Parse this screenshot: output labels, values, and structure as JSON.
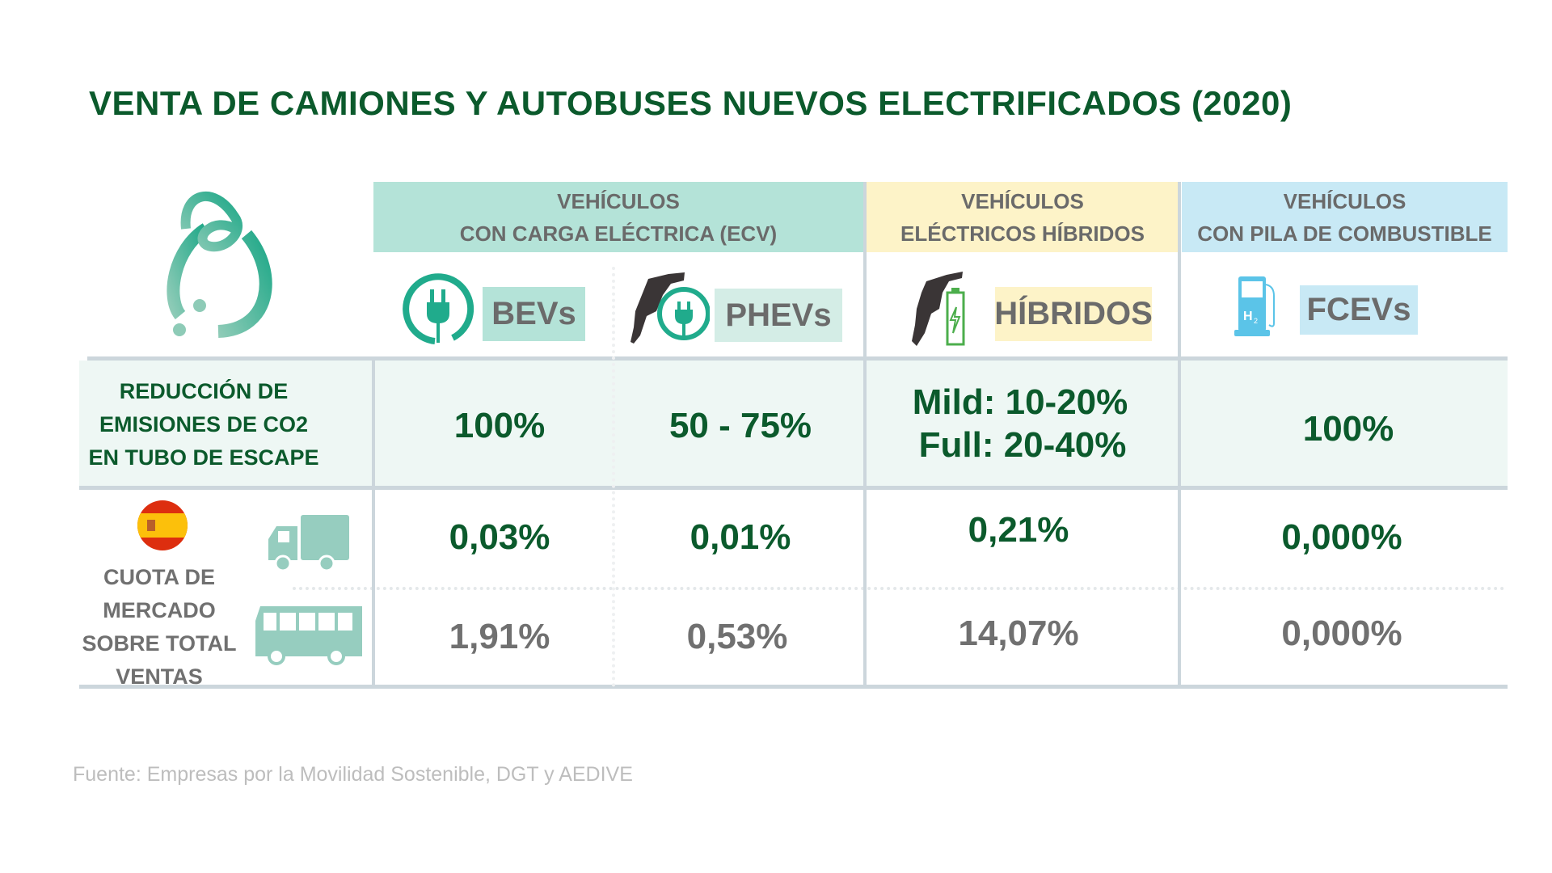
{
  "title": "VENTA DE CAMIONES Y AUTOBUSES NUEVOS ELECTRIFICADOS (2020)",
  "groups": [
    {
      "line1": "VEHÍCULOS",
      "line2": "CON CARGA ELÉCTRICA (ECV)",
      "color": "#b4e3d8"
    },
    {
      "line1": "VEHÍCULOS",
      "line2": "ELÉCTRICOS HÍBRIDOS",
      "color": "#fdf3c8"
    },
    {
      "line1": "VEHÍCULOS",
      "line2": "CON PILA DE COMBUSTIBLE",
      "color": "#c8e9f5"
    }
  ],
  "types": [
    {
      "label": "BEVs",
      "icon": "plug-icon"
    },
    {
      "label": "PHEVs",
      "icon": "fuel-nozzle-plug-icon"
    },
    {
      "label": "HÍBRIDOS",
      "icon": "fuel-nozzle-battery-icon"
    },
    {
      "label": "FCEVs",
      "icon": "hydrogen-pump-icon"
    }
  ],
  "emissions": {
    "label": [
      "REDUCCIÓN DE",
      "EMISIONES DE CO2",
      "EN TUBO DE ESCAPE"
    ],
    "values": [
      "100%",
      "50 - 75%",
      "Mild: 10-20%",
      "Full: 20-40%",
      "100%"
    ]
  },
  "market": {
    "label": [
      "CUOTA DE",
      "MERCADO",
      "SOBRE TOTAL",
      "VENTAS"
    ],
    "trucks": [
      "0,03%",
      "0,01%",
      "0,21%",
      "0,000%"
    ],
    "buses": [
      "1,91%",
      "0,53%",
      "14,07%",
      "0,000%"
    ]
  },
  "footer": "Fuente: Empresas por la Movilidad Sostenible, DGT y AEDIVE",
  "colors": {
    "title": "#0b5a2c",
    "teal": "#20ab8c",
    "icon_green": "#96cdbf",
    "h2": "#5bc4e8"
  }
}
